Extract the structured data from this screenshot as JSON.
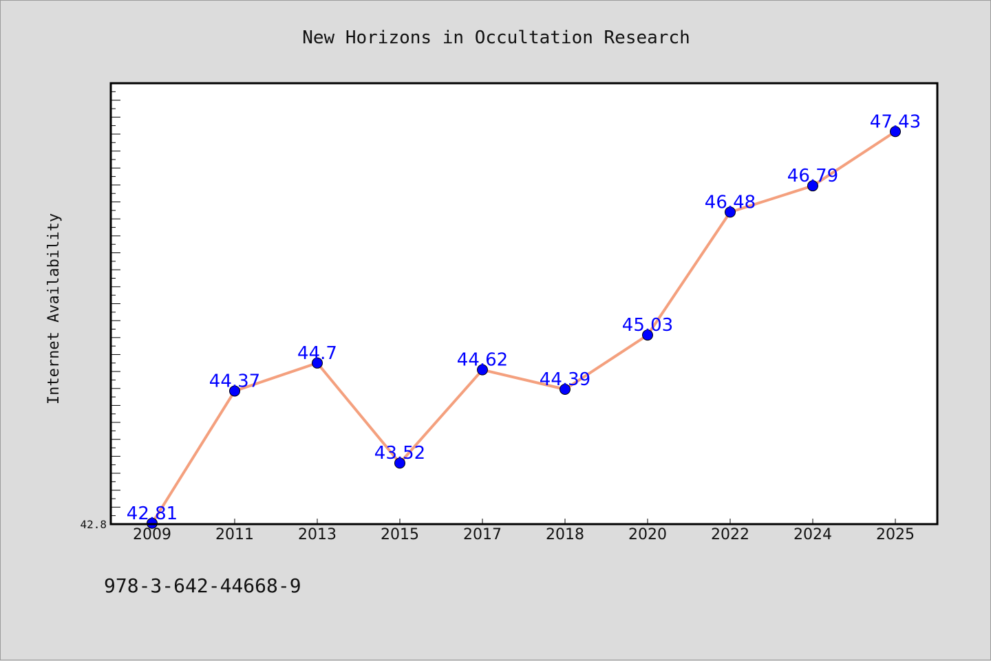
{
  "chart_data": {
    "type": "line",
    "title": "New Horizons in Occultation Research",
    "xlabel": "",
    "ylabel": "Internet Availability",
    "categories": [
      "2009",
      "2011",
      "2013",
      "2015",
      "2017",
      "2018",
      "2020",
      "2022",
      "2024",
      "2025"
    ],
    "series": [
      {
        "values": [
          42.81,
          44.37,
          44.7,
          43.52,
          44.62,
          44.39,
          45.03,
          46.48,
          46.79,
          47.43
        ],
        "labels": [
          "42.81",
          "44.37",
          "44.7",
          "43.52",
          "44.62",
          "44.39",
          "45.03",
          "46.48",
          "46.79",
          "47.43"
        ]
      }
    ],
    "ylim": [
      42.8,
      48.0
    ],
    "yticks_labeled": [
      "42.8"
    ],
    "grid": false,
    "line_color": "#f4a07e",
    "marker_color": "#0000ff",
    "label_color": "#0000ff"
  },
  "footnote": "978-3-642-44668-9"
}
